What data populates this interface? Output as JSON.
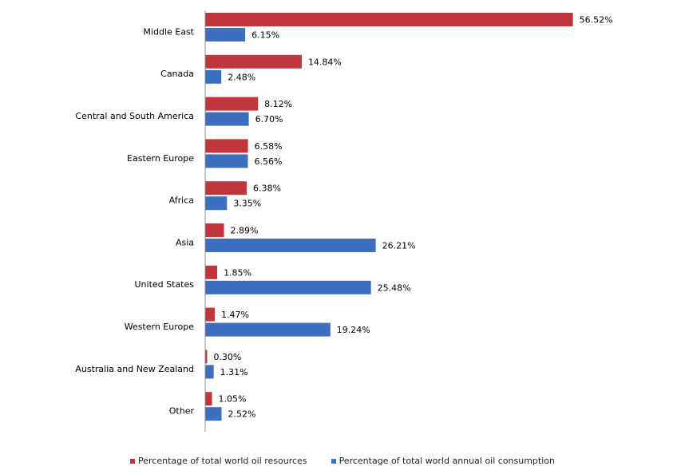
{
  "chart_data": {
    "type": "bar",
    "orientation": "horizontal",
    "categories": [
      "Middle East",
      "Canada",
      "Central and South America",
      "Eastern Europe",
      "Africa",
      "Asia",
      "United States",
      "Western Europe",
      "Australia and New Zealand",
      "Other"
    ],
    "series": [
      {
        "name": "Percentage of total world oil resources",
        "color": "#c0363b",
        "values": [
          56.52,
          14.84,
          8.12,
          6.58,
          6.38,
          2.89,
          1.85,
          1.47,
          0.3,
          1.05
        ],
        "labels": [
          "56.52%",
          "14.84%",
          "8.12%",
          "6.58%",
          "6.38%",
          "2.89%",
          "1.85%",
          "1.47%",
          "0.30%",
          "1.05%"
        ]
      },
      {
        "name": "Percentage of total world annual oil consumption",
        "color": "#3c6fbf",
        "values": [
          6.15,
          2.48,
          6.7,
          6.56,
          3.35,
          26.21,
          25.48,
          19.24,
          1.31,
          2.52
        ],
        "labels": [
          "6.15%",
          "2.48%",
          "6.70%",
          "6.56%",
          "3.35%",
          "26.21%",
          "25.48%",
          "19.24%",
          "1.31%",
          "2.52%"
        ]
      }
    ],
    "xlim": [
      0,
      60
    ],
    "grid": false,
    "legend_position": "bottom"
  }
}
